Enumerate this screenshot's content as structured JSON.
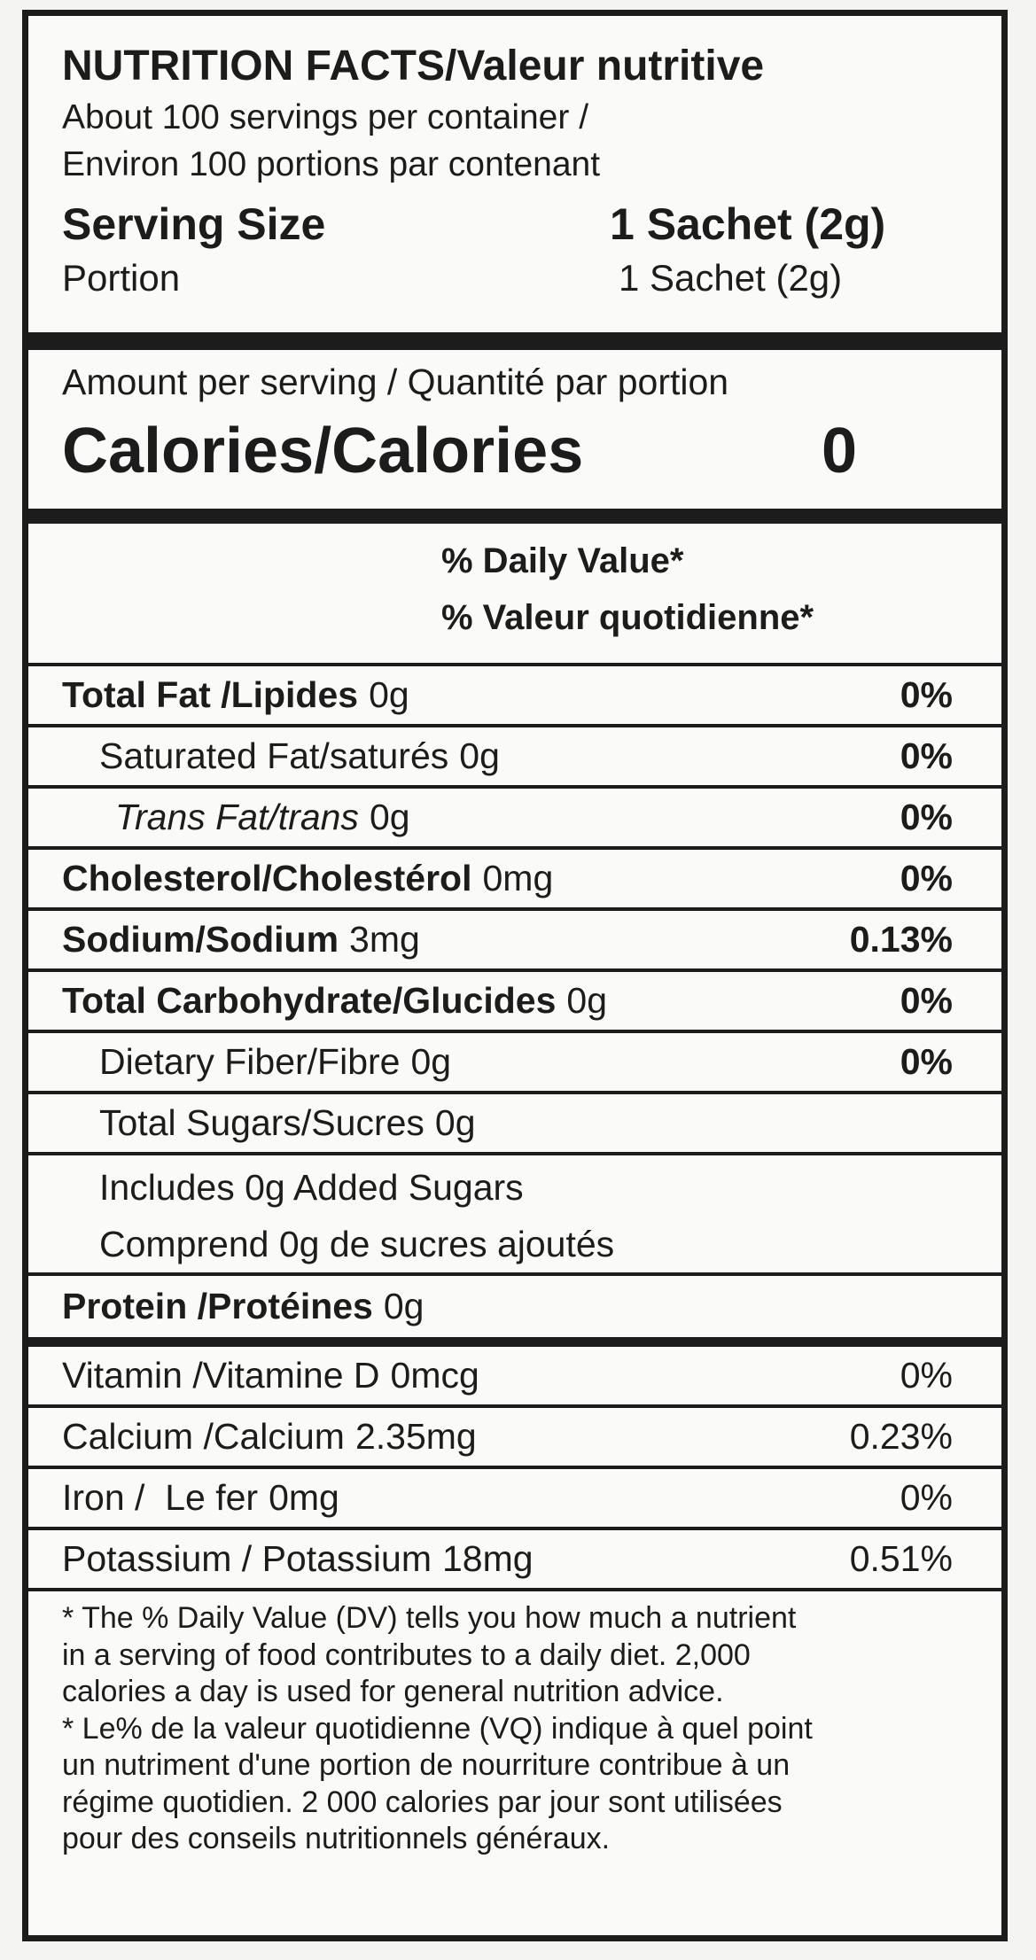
{
  "header": {
    "title": "NUTRITION FACTS/Valeur nutritive",
    "servings_en": "About 100 servings per container /",
    "servings_fr": "Environ 100 portions par contenant",
    "serving_size_label": "Serving Size",
    "serving_size_value": "1 Sachet (2g)",
    "portion_label": "Portion",
    "portion_value": "1 Sachet (2g)"
  },
  "calories": {
    "amount_per_serving": "Amount per serving / Quantité par portion",
    "label": "Calories/Calories",
    "value": "0"
  },
  "daily_value_heading": [
    "% Daily Value*",
    "% Valeur quotidienne*"
  ],
  "nutrients": [
    {
      "name": "Total Fat /Lipides",
      "amount": "0g",
      "dv": "0%"
    },
    {
      "name": "Saturated Fat/saturés",
      "amount": "0g",
      "dv": "0%"
    },
    {
      "name": "Trans Fat/trans",
      "amount": "0g",
      "dv": "0%"
    },
    {
      "name": "Cholesterol/Cholestérol",
      "amount": "0mg",
      "dv": "0%"
    },
    {
      "name": "Sodium/Sodium",
      "amount": "3mg",
      "dv": "0.13%"
    },
    {
      "name": "Total Carbohydrate/Glucides",
      "amount": "0g",
      "dv": "0%"
    },
    {
      "name": "Dietary Fiber/Fibre",
      "amount": "0g",
      "dv": "0%"
    },
    {
      "name": "Total Sugars/Sucres",
      "amount": "0g"
    },
    {
      "lines": [
        "Includes 0g Added Sugars",
        "Comprend 0g de sucres ajoutés"
      ]
    },
    {
      "name": "Protein /Protéines",
      "amount": "0g"
    }
  ],
  "vitamins": [
    {
      "name": "Vitamin /Vitamine D",
      "amount": "0mcg",
      "dv": "0%"
    },
    {
      "name": "Calcium /Calcium",
      "amount": "2.35mg",
      "dv": "0.23%"
    },
    {
      "name": "Iron /  Le fer",
      "amount": "0mg",
      "dv": "0%"
    },
    {
      "name": "Potassium / Potassium",
      "amount": "18mg",
      "dv": "0.51%"
    }
  ],
  "footnote": {
    "lines": [
      "* The % Daily Value (DV) tells you how much a nutrient",
      "in a serving of food contributes to a daily diet. 2,000",
      "calories a day is used for general nutrition advice.",
      "* Le% de la valeur quotidienne (VQ) indique à quel point",
      "un nutriment d'une portion de nourriture contribue à un",
      "régime quotidien. 2 000 calories par jour sont utilisées",
      "pour des conseils nutritionnels généraux."
    ]
  }
}
